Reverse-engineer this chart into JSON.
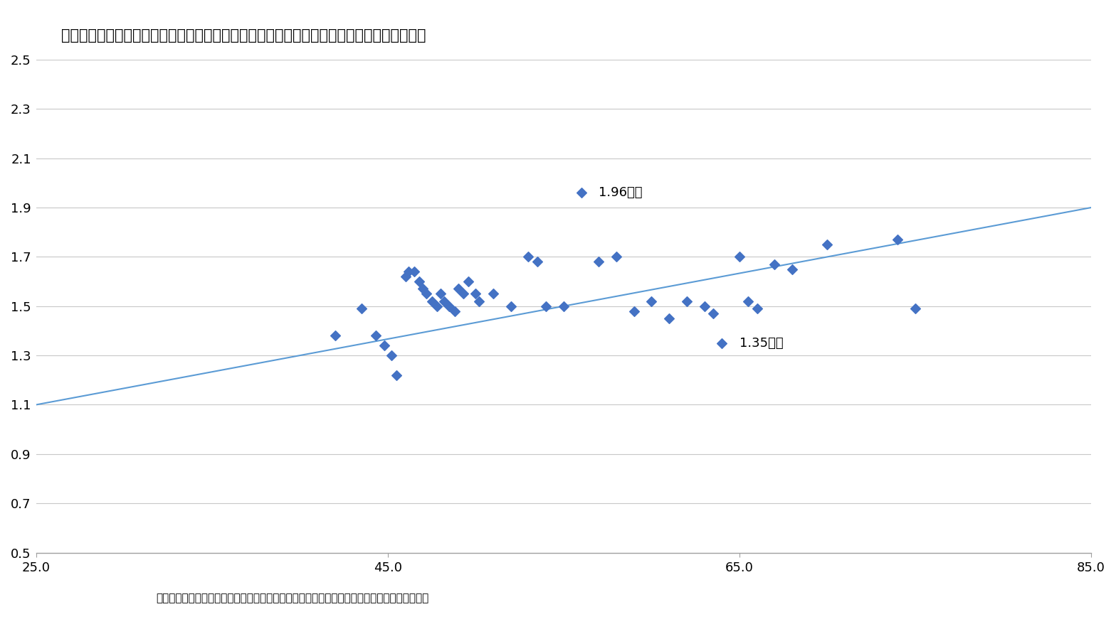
{
  "title": "》図表１「都道府県別　有業母率と合計特殊出生率の相関関係（縦：出生率・横：有業率）",
  "title_raw": "【図表１】都道府県別　有業母率と合計特殊出生率の相関関係（縦：出生率・横：有業率）",
  "footnote_raw": "資料）総務省「平成２４年　就業基本構造調査」、厚生労働省「人口動態統計」より筆者作成",
  "scatter_color": "#4472C4",
  "line_color": "#5B9BD5",
  "marker": "D",
  "marker_size": 7,
  "xlim": [
    25.0,
    85.0
  ],
  "ylim": [
    0.5,
    2.5
  ],
  "xticks": [
    25.0,
    45.0,
    65.0,
    85.0
  ],
  "yticks": [
    0.5,
    0.7,
    0.9,
    1.1,
    1.3,
    1.5,
    1.7,
    1.9,
    2.1,
    2.3,
    2.5
  ],
  "trend_x": [
    25.0,
    85.0
  ],
  "trend_y": [
    1.1,
    1.9
  ],
  "label_okinawa": "1.96沖縄",
  "label_kyoto": "1.35京都",
  "data_points": [
    [
      42.0,
      1.38
    ],
    [
      43.5,
      1.49
    ],
    [
      44.3,
      1.38
    ],
    [
      44.8,
      1.34
    ],
    [
      45.2,
      1.3
    ],
    [
      45.5,
      1.22
    ],
    [
      46.0,
      1.62
    ],
    [
      46.2,
      1.64
    ],
    [
      46.5,
      1.64
    ],
    [
      46.8,
      1.6
    ],
    [
      47.0,
      1.57
    ],
    [
      47.2,
      1.55
    ],
    [
      47.5,
      1.52
    ],
    [
      47.8,
      1.5
    ],
    [
      48.0,
      1.55
    ],
    [
      48.2,
      1.52
    ],
    [
      48.5,
      1.5
    ],
    [
      48.8,
      1.48
    ],
    [
      49.0,
      1.57
    ],
    [
      49.3,
      1.55
    ],
    [
      49.6,
      1.6
    ],
    [
      50.0,
      1.55
    ],
    [
      50.2,
      1.52
    ],
    [
      51.0,
      1.55
    ],
    [
      52.0,
      1.5
    ],
    [
      53.0,
      1.7
    ],
    [
      53.5,
      1.68
    ],
    [
      54.0,
      1.5
    ],
    [
      55.0,
      1.5
    ],
    [
      56.0,
      1.96
    ],
    [
      57.0,
      1.68
    ],
    [
      58.0,
      1.7
    ],
    [
      59.0,
      1.48
    ],
    [
      60.0,
      1.52
    ],
    [
      61.0,
      1.45
    ],
    [
      62.0,
      1.52
    ],
    [
      63.0,
      1.5
    ],
    [
      63.5,
      1.47
    ],
    [
      64.0,
      1.35
    ],
    [
      65.0,
      1.7
    ],
    [
      65.5,
      1.52
    ],
    [
      66.0,
      1.49
    ],
    [
      67.0,
      1.67
    ],
    [
      68.0,
      1.65
    ],
    [
      70.0,
      1.75
    ],
    [
      74.0,
      1.77
    ],
    [
      75.0,
      1.49
    ]
  ],
  "okinawa_point": [
    56.0,
    1.96
  ],
  "kyoto_point": [
    64.0,
    1.35
  ],
  "background_color": "#ffffff",
  "grid_color": "#C8C8C8",
  "title_fontsize": 15,
  "tick_fontsize": 13,
  "annotation_fontsize": 13,
  "footnote_fontsize": 11
}
